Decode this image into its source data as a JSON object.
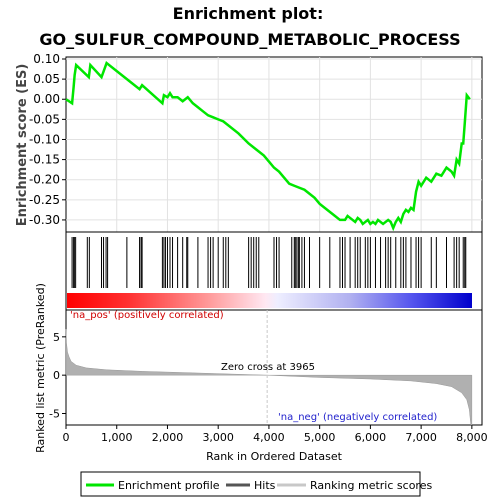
{
  "title_line1": "Enrichment plot:",
  "title_line2": "GO_SULFUR_COMPOUND_METABOLIC_PROCESS",
  "colors": {
    "enrichment": "#00e600",
    "hits": "#000000",
    "ranking_fill": "#b0b0b0",
    "pos_label": "#d00000",
    "neg_label": "#2222cc",
    "zero_line": "#c8c8c8"
  },
  "chart_data": [
    {
      "type": "line",
      "name": "enrichment-profile",
      "ylabel": "Enrichment score (ES)",
      "xlim": [
        0,
        8200
      ],
      "ylim": [
        -0.33,
        0.105
      ],
      "yticks": [
        0.1,
        0.05,
        0.0,
        -0.05,
        -0.1,
        -0.15,
        -0.2,
        -0.25,
        -0.3
      ],
      "ytick_labels": [
        "0.10",
        "0.05",
        "0.00",
        "-0.05",
        "-0.10",
        "-0.15",
        "-0.20",
        "-0.25",
        "-0.30"
      ],
      "grid": true,
      "x": [
        0,
        120,
        150,
        170,
        200,
        450,
        480,
        700,
        800,
        1150,
        1200,
        1450,
        1500,
        1900,
        1930,
        2000,
        2050,
        2100,
        2200,
        2300,
        2400,
        2500,
        2600,
        2700,
        2800,
        2900,
        3000,
        3100,
        3200,
        3400,
        3600,
        3700,
        3800,
        3900,
        4000,
        4100,
        4200,
        4300,
        4400,
        4500,
        4600,
        4700,
        4800,
        4900,
        5000,
        5100,
        5200,
        5300,
        5400,
        5500,
        5550,
        5600,
        5650,
        5700,
        5750,
        5800,
        5850,
        5900,
        5950,
        6000,
        6050,
        6100,
        6150,
        6200,
        6250,
        6300,
        6350,
        6400,
        6450,
        6500,
        6550,
        6600,
        6650,
        6700,
        6750,
        6800,
        6850,
        6900,
        6950,
        7000,
        7100,
        7200,
        7300,
        7400,
        7500,
        7600,
        7650,
        7700,
        7750,
        7800,
        7830,
        7860,
        7900,
        7960
      ],
      "y": [
        0.0,
        -0.01,
        0.03,
        0.06,
        0.085,
        0.055,
        0.085,
        0.055,
        0.09,
        0.055,
        0.05,
        0.025,
        0.035,
        -0.01,
        0.01,
        0.005,
        0.015,
        0.005,
        0.005,
        -0.005,
        0.005,
        -0.01,
        -0.02,
        -0.03,
        -0.04,
        -0.045,
        -0.05,
        -0.055,
        -0.065,
        -0.085,
        -0.11,
        -0.12,
        -0.13,
        -0.14,
        -0.155,
        -0.17,
        -0.18,
        -0.195,
        -0.21,
        -0.215,
        -0.22,
        -0.225,
        -0.235,
        -0.245,
        -0.26,
        -0.27,
        -0.28,
        -0.29,
        -0.3,
        -0.3,
        -0.29,
        -0.295,
        -0.3,
        -0.305,
        -0.295,
        -0.3,
        -0.31,
        -0.305,
        -0.3,
        -0.31,
        -0.305,
        -0.31,
        -0.3,
        -0.305,
        -0.31,
        -0.305,
        -0.3,
        -0.305,
        -0.32,
        -0.305,
        -0.295,
        -0.305,
        -0.285,
        -0.275,
        -0.28,
        -0.27,
        -0.275,
        -0.23,
        -0.205,
        -0.215,
        -0.195,
        -0.205,
        -0.185,
        -0.19,
        -0.17,
        -0.18,
        -0.19,
        -0.15,
        -0.16,
        -0.11,
        -0.11,
        -0.06,
        0.01,
        0.0
      ]
    },
    {
      "type": "hits",
      "name": "hits",
      "x": [
        120,
        150,
        165,
        190,
        420,
        460,
        700,
        740,
        790,
        820,
        1200,
        1450,
        1480,
        1500,
        1900,
        1930,
        1960,
        2000,
        2050,
        2100,
        2200,
        2300,
        2380,
        2400,
        2600,
        2800,
        2850,
        2900,
        3000,
        3100,
        3150,
        3200,
        3600,
        3650,
        3700,
        3750,
        3800,
        4100,
        4150,
        4200,
        4450,
        4500,
        4520,
        4550,
        4580,
        4600,
        4650,
        4700,
        4800,
        5000,
        5200,
        5400,
        5450,
        5500,
        5600,
        5700,
        5750,
        5800,
        5900,
        5950,
        6000,
        6100,
        6200,
        6300,
        6350,
        6400,
        6500,
        6600,
        6650,
        6700,
        6800,
        6900,
        6950,
        7000,
        7200,
        7300,
        7500,
        7650,
        7700,
        7750,
        7830,
        7860,
        7880
      ]
    },
    {
      "type": "area",
      "name": "ranking-metric",
      "ylabel": "Ranked list metric (PreRanked)",
      "xlabel": "Rank in Ordered Dataset",
      "xlim": [
        0,
        8200
      ],
      "ylim": [
        -6.5,
        8.5
      ],
      "yticks": [
        5,
        0,
        -5
      ],
      "ytick_labels": [
        "5",
        "0",
        "-5"
      ],
      "xticks": [
        0,
        1000,
        2000,
        3000,
        4000,
        5000,
        6000,
        7000,
        8000
      ],
      "xtick_labels": [
        "0",
        "1,000",
        "2,000",
        "3,000",
        "4,000",
        "5,000",
        "6,000",
        "7,000",
        "8,000"
      ],
      "x": [
        0,
        10,
        30,
        60,
        100,
        200,
        400,
        800,
        1500,
        2500,
        3965,
        5000,
        6000,
        6800,
        7300,
        7600,
        7800,
        7900,
        7950,
        7980,
        8000
      ],
      "y": [
        6.0,
        4.2,
        3.0,
        2.4,
        1.8,
        1.3,
        0.95,
        0.7,
        0.5,
        0.3,
        0.0,
        -0.3,
        -0.5,
        -0.75,
        -1.1,
        -1.5,
        -2.3,
        -3.2,
        -4.5,
        -6.5,
        -6.5
      ],
      "zero_cross_label": "Zero cross at 3965",
      "zero_cross_x": 3965,
      "pos_label": "'na_pos' (positively correlated)",
      "neg_label": "'na_neg' (negatively correlated)"
    }
  ],
  "legend": {
    "items": [
      {
        "label": "Enrichment profile",
        "color": "#00e600"
      },
      {
        "label": "Hits",
        "color": "#555555"
      },
      {
        "label": "Ranking metric scores",
        "color": "#c8c8c8"
      }
    ]
  }
}
